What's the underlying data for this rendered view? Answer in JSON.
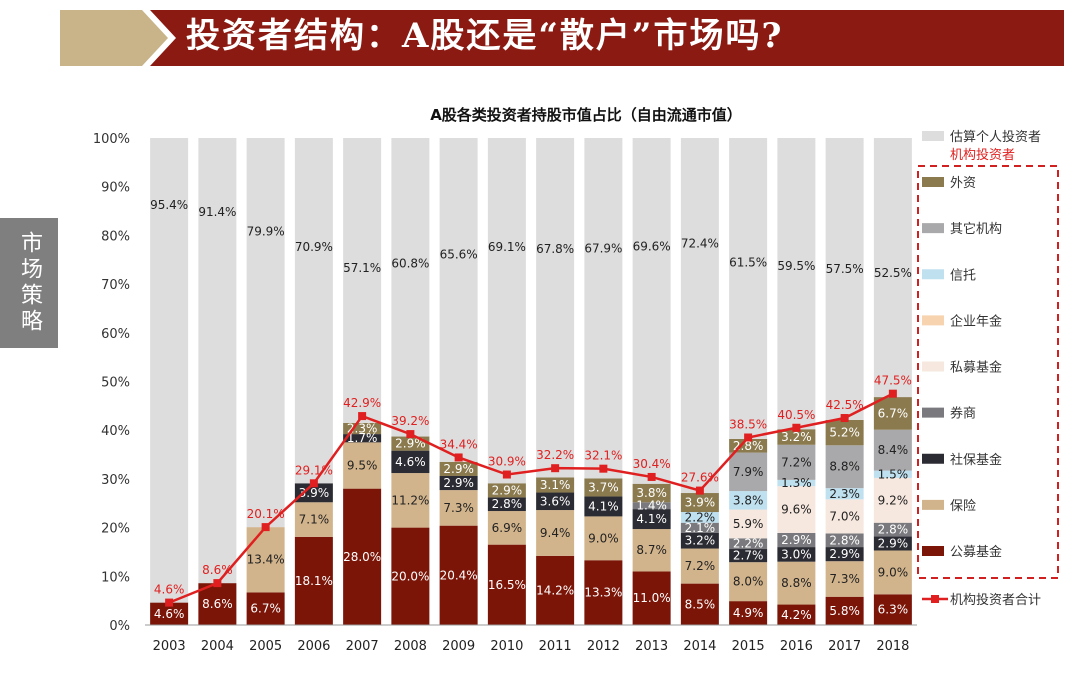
{
  "header": {
    "title": "投资者结构：A股还是“散户”市场吗?",
    "side_tab": "市场策略"
  },
  "colors": {
    "banner_dark": "#8b1a12",
    "banner_light": "#c9b48a",
    "total_line": "#e02020",
    "legend_box": "#d02020"
  },
  "chart_data": {
    "type": "bar",
    "stacked": true,
    "title": "A股各类投资者持股市值占比（自由流通市值）",
    "ylim": [
      0,
      100
    ],
    "yticks": [
      "0%",
      "10%",
      "20%",
      "30%",
      "40%",
      "50%",
      "60%",
      "70%",
      "80%",
      "90%",
      "100%"
    ],
    "categories": [
      "2003",
      "2004",
      "2005",
      "2006",
      "2007",
      "2008",
      "2009",
      "2010",
      "2011",
      "2012",
      "2013",
      "2014",
      "2015",
      "2016",
      "2017",
      "2018"
    ],
    "series": [
      {
        "name": "公募基金",
        "color": "#7a1508",
        "values": [
          4.6,
          8.6,
          6.7,
          18.1,
          28.0,
          20.0,
          20.4,
          16.5,
          14.2,
          13.3,
          11.0,
          8.5,
          4.9,
          4.2,
          5.8,
          6.3
        ],
        "labels": [
          "4.6%",
          "8.6%",
          "6.7%",
          "18.1%",
          "28.0%",
          "20.0%",
          "20.4%",
          "16.5%",
          "14.2%",
          "13.3%",
          "11.0%",
          "8.5%",
          "4.9%",
          "4.2%",
          "5.8%",
          "6.3%"
        ]
      },
      {
        "name": "保险",
        "color": "#d2b48c",
        "values": [
          0,
          0,
          13.4,
          7.1,
          9.5,
          11.2,
          7.3,
          6.9,
          9.4,
          9.0,
          8.7,
          7.2,
          8.0,
          8.8,
          7.3,
          9.0
        ],
        "labels": [
          "",
          "",
          "13.4%",
          "7.1%",
          "9.5%",
          "11.2%",
          "7.3%",
          "6.9%",
          "9.4%",
          "9.0%",
          "8.7%",
          "7.2%",
          "8.0%",
          "8.8%",
          "7.3%",
          "9.0%"
        ]
      },
      {
        "name": "社保基金",
        "color": "#2b2b33",
        "values": [
          0,
          0,
          0,
          3.9,
          1.7,
          4.6,
          2.9,
          2.8,
          3.6,
          4.1,
          4.1,
          3.2,
          2.7,
          3.0,
          2.9,
          2.9
        ],
        "labels": [
          "",
          "",
          "",
          "3.9%",
          "1.7%",
          "4.6%",
          "2.9%",
          "2.8%",
          "3.6%",
          "4.1%",
          "4.1%",
          "3.2%",
          "2.7%",
          "3.0%",
          "2.9%",
          "2.9%"
        ]
      },
      {
        "name": "券商",
        "color": "#7a7a7e",
        "values": [
          0,
          0,
          0,
          0,
          0,
          0,
          0,
          0,
          0,
          0,
          1.4,
          2.1,
          2.2,
          2.9,
          2.8,
          2.8
        ],
        "labels": [
          "",
          "",
          "",
          "",
          "",
          "",
          "",
          "",
          "",
          "",
          "1.4%",
          "2.1%",
          "2.2%",
          "2.9%",
          "2.8%",
          "2.8%"
        ]
      },
      {
        "name": "私募基金",
        "color": "#f6e8df",
        "values": [
          0,
          0,
          0,
          0,
          0,
          0,
          0,
          0,
          0,
          0,
          0,
          0,
          5.9,
          9.6,
          7.0,
          9.2
        ],
        "labels": [
          "",
          "",
          "",
          "",
          "",
          "",
          "",
          "",
          "",
          "",
          "",
          "",
          "5.9%",
          "9.6%",
          "7.0%",
          "9.2%"
        ]
      },
      {
        "name": "企业年金",
        "color": "#f7d3b0",
        "values": [
          0,
          0,
          0,
          0,
          0,
          0,
          0,
          0,
          0,
          0,
          0,
          0,
          0,
          0,
          0,
          0
        ],
        "labels": [
          "",
          "",
          "",
          "",
          "",
          "",
          "",
          "",
          "",
          "",
          "",
          "",
          "",
          "",
          "",
          ""
        ]
      },
      {
        "name": "信托",
        "color": "#bfe0ef",
        "values": [
          0,
          0,
          0,
          0,
          0,
          0,
          0,
          0,
          0,
          0,
          0,
          2.2,
          3.8,
          1.3,
          2.3,
          1.5
        ],
        "labels": [
          "",
          "",
          "",
          "",
          "",
          "",
          "",
          "",
          "",
          "",
          "",
          "2.2%",
          "3.8%",
          "1.3%",
          "2.3%",
          "1.5%"
        ]
      },
      {
        "name": "其它机构",
        "color": "#a9a9ab",
        "values": [
          0,
          0,
          0,
          0,
          0,
          0,
          0,
          0,
          0,
          0,
          0,
          0,
          7.9,
          7.2,
          8.8,
          8.4
        ],
        "labels": [
          "",
          "",
          "",
          "",
          "",
          "",
          "",
          "",
          "",
          "",
          "",
          "",
          "7.9%",
          "7.2%",
          "8.8%",
          "8.4%"
        ]
      },
      {
        "name": "外资",
        "color": "#8a7a4e",
        "values": [
          0,
          0,
          0,
          0,
          2.3,
          2.9,
          2.9,
          2.9,
          3.1,
          3.7,
          3.8,
          3.9,
          2.8,
          3.2,
          5.2,
          6.7
        ],
        "labels": [
          "",
          "",
          "",
          "",
          "2.3%",
          "2.9%",
          "2.9%",
          "2.9%",
          "3.1%",
          "3.7%",
          "3.8%",
          "3.9%",
          "2.8%",
          "3.2%",
          "5.2%",
          "6.7%"
        ]
      },
      {
        "name": "估算个人投资者",
        "color": "#dddddd",
        "values": [
          95.4,
          91.4,
          79.9,
          70.9,
          57.1,
          60.8,
          65.6,
          69.1,
          67.8,
          67.9,
          69.6,
          72.4,
          61.5,
          59.5,
          57.5,
          52.5
        ],
        "labels": [
          "95.4%",
          "91.4%",
          "79.9%",
          "70.9%",
          "57.1%",
          "60.8%",
          "65.6%",
          "69.1%",
          "67.8%",
          "67.9%",
          "69.6%",
          "72.4%",
          "61.5%",
          "59.5%",
          "57.5%",
          "52.5%"
        ]
      }
    ],
    "total_line": {
      "name": "机构投资者合计",
      "values": [
        4.6,
        8.6,
        20.1,
        29.1,
        42.9,
        39.2,
        34.4,
        30.9,
        32.2,
        32.1,
        30.4,
        27.6,
        38.5,
        40.5,
        42.5,
        47.5
      ],
      "labels": [
        "4.6%",
        "8.6%",
        "20.1%",
        "29.1%",
        "42.9%",
        "39.2%",
        "34.4%",
        "30.9%",
        "32.2%",
        "32.1%",
        "30.4%",
        "27.6%",
        "38.5%",
        "40.5%",
        "42.5%",
        "47.5%"
      ]
    },
    "legend_group_label": "机构投资者",
    "legend_order": [
      "估算个人投资者",
      "外资",
      "其它机构",
      "信托",
      "企业年金",
      "私募基金",
      "券商",
      "社保基金",
      "保险",
      "公募基金"
    ],
    "legend_position": "right"
  }
}
